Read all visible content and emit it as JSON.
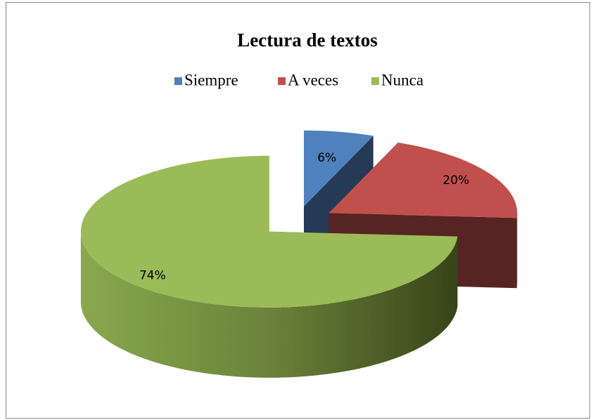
{
  "chart_data": {
    "type": "pie",
    "title": "Lectura de textos",
    "categories": [
      "Siempre",
      "A veces",
      "Nunca"
    ],
    "values": [
      6,
      20,
      74
    ],
    "value_labels": [
      "6%",
      "20%",
      "74%"
    ],
    "colors": [
      "#4f81bd",
      "#c0504d",
      "#9bbb59"
    ],
    "legend": "top",
    "exploded": true,
    "three_d": true
  }
}
